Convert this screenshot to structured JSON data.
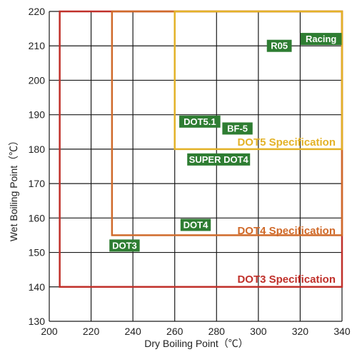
{
  "chart_data": {
    "type": "scatter",
    "title": "",
    "xlabel": "Dry Boiling Point（℃）",
    "ylabel": "Wet Boiling Point（℃）",
    "xlim": [
      200,
      340
    ],
    "ylim": [
      130,
      220
    ],
    "x_ticks": [
      "200",
      "220",
      "240",
      "260",
      "280",
      "300",
      "320",
      "340"
    ],
    "y_ticks": [
      "130",
      "140",
      "150",
      "160",
      "170",
      "180",
      "190",
      "200",
      "210",
      "220"
    ],
    "grid": true,
    "specifications": [
      {
        "name": "DOT3 Specification",
        "color": "#c0302a",
        "dry_min": 205,
        "wet_min": 140
      },
      {
        "name": "DOT4 Specification",
        "color": "#d06a2a",
        "dry_min": 230,
        "wet_min": 155
      },
      {
        "name": "DOT5 Specification",
        "color": "#e3b227",
        "dry_min": 260,
        "wet_min": 180
      }
    ],
    "products": [
      {
        "name": "DOT3",
        "x": 236,
        "y": 152,
        "color": "#2e7d32"
      },
      {
        "name": "DOT4",
        "x": 270,
        "y": 158,
        "color": "#2e7d32"
      },
      {
        "name": "SUPER DOT4",
        "x": 281,
        "y": 177,
        "color": "#2e7d32"
      },
      {
        "name": "DOT5.1",
        "x": 272,
        "y": 188,
        "color": "#2e7d32"
      },
      {
        "name": "BF-5",
        "x": 290,
        "y": 186,
        "color": "#2e7d32"
      },
      {
        "name": "R05",
        "x": 310,
        "y": 210,
        "color": "#2e7d32"
      },
      {
        "name": "Racing",
        "x": 330,
        "y": 212,
        "color": "#2e7d32"
      }
    ]
  }
}
